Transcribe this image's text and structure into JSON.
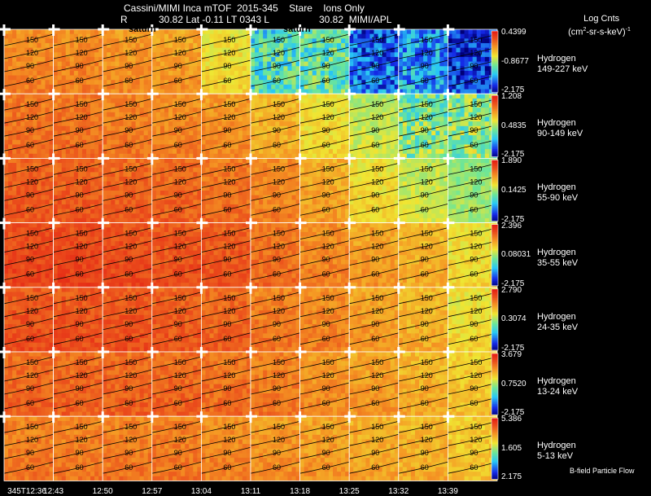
{
  "header": {
    "line1": "Cassini/MIMI Inca mTOF  2015-345    Stare    Ions Only",
    "line2_r": "R",
    "line2_mid": "30.82 Lat -0.11 LT 0343 L",
    "line2_right": "30.82  MIMI/APL",
    "saturn_label_1": "saturn",
    "saturn_label_2": "saturn"
  },
  "scale_title": {
    "line1": "Log Cnts",
    "line2": "(cm",
    "line2_sup": "2",
    "line2_rest": "-sr-s-keV)",
    "line2_sup2": "-1"
  },
  "footer_note": "B-field Particle Flow",
  "time_labels": [
    "345T12:36",
    "12:43",
    "12:50",
    "12:57",
    "13:04",
    "13:11",
    "13:18",
    "13:25",
    "13:32",
    "13:39"
  ],
  "contour_labels": [
    "150",
    "120",
    "90",
    "60"
  ],
  "colors": {
    "orange": "#f07f1f",
    "red": "#e8321e",
    "yellow": "#f2e532",
    "cyan": "#35d8f0",
    "blue": "#1a2bdc",
    "darkblue": "#0010b0",
    "green": "#7fe07a"
  },
  "chart_data": {
    "type": "heatmap",
    "title": "Cassini/MIMI Inca mTOF  2015-345    Stare    Ions Only",
    "x": [
      "345T12:36",
      "12:43",
      "12:50",
      "12:57",
      "13:04",
      "13:11",
      "13:18",
      "13:25",
      "13:32",
      "13:39"
    ],
    "colorbar_label": "Log Cnts (cm2-sr-s-keV)-1",
    "rows": [
      {
        "species": "Hydrogen",
        "energy": "149-227 keV",
        "cmax": "0.4399",
        "cmid": "-0.8677",
        "cmin": "-2.175",
        "levels": [
          0.78,
          0.78,
          0.76,
          0.74,
          0.62,
          0.4,
          0.42,
          0.18,
          0.25,
          0.12
        ]
      },
      {
        "species": "Hydrogen",
        "energy": "90-149 keV",
        "cmax": "1.208",
        "cmid": "0.4835",
        "cmin": "-2.175",
        "levels": [
          0.82,
          0.82,
          0.8,
          0.78,
          0.76,
          0.7,
          0.62,
          0.55,
          0.47,
          0.48
        ]
      },
      {
        "species": "Hydrogen",
        "energy": "55-90 keV",
        "cmax": "1.890",
        "cmid": "0.1425",
        "cmin": "-2.175",
        "levels": [
          0.86,
          0.86,
          0.85,
          0.84,
          0.82,
          0.78,
          0.72,
          0.62,
          0.56,
          0.5
        ]
      },
      {
        "species": "Hydrogen",
        "energy": "35-55 keV",
        "cmax": "2.396",
        "cmid": "0.08031",
        "cmin": "-2.175",
        "levels": [
          0.9,
          0.9,
          0.89,
          0.88,
          0.87,
          0.82,
          0.78,
          0.74,
          0.7,
          0.62
        ]
      },
      {
        "species": "Hydrogen",
        "energy": "24-35 keV",
        "cmax": "2.790",
        "cmid": "0.3074",
        "cmin": "-2.175",
        "levels": [
          0.88,
          0.88,
          0.88,
          0.86,
          0.84,
          0.8,
          0.78,
          0.74,
          0.7,
          0.62
        ]
      },
      {
        "species": "Hydrogen",
        "energy": "13-24 keV",
        "cmax": "3.679",
        "cmid": "0.7520",
        "cmin": "-2.175",
        "levels": [
          0.84,
          0.84,
          0.84,
          0.84,
          0.82,
          0.8,
          0.76,
          0.74,
          0.7,
          0.66
        ]
      },
      {
        "species": "Hydrogen",
        "energy": "5-13 keV",
        "cmax": "5.386",
        "cmid": "1.605",
        "cmin": "2.175",
        "levels": [
          0.8,
          0.8,
          0.8,
          0.8,
          0.78,
          0.76,
          0.74,
          0.72,
          0.7,
          0.66
        ]
      }
    ]
  }
}
